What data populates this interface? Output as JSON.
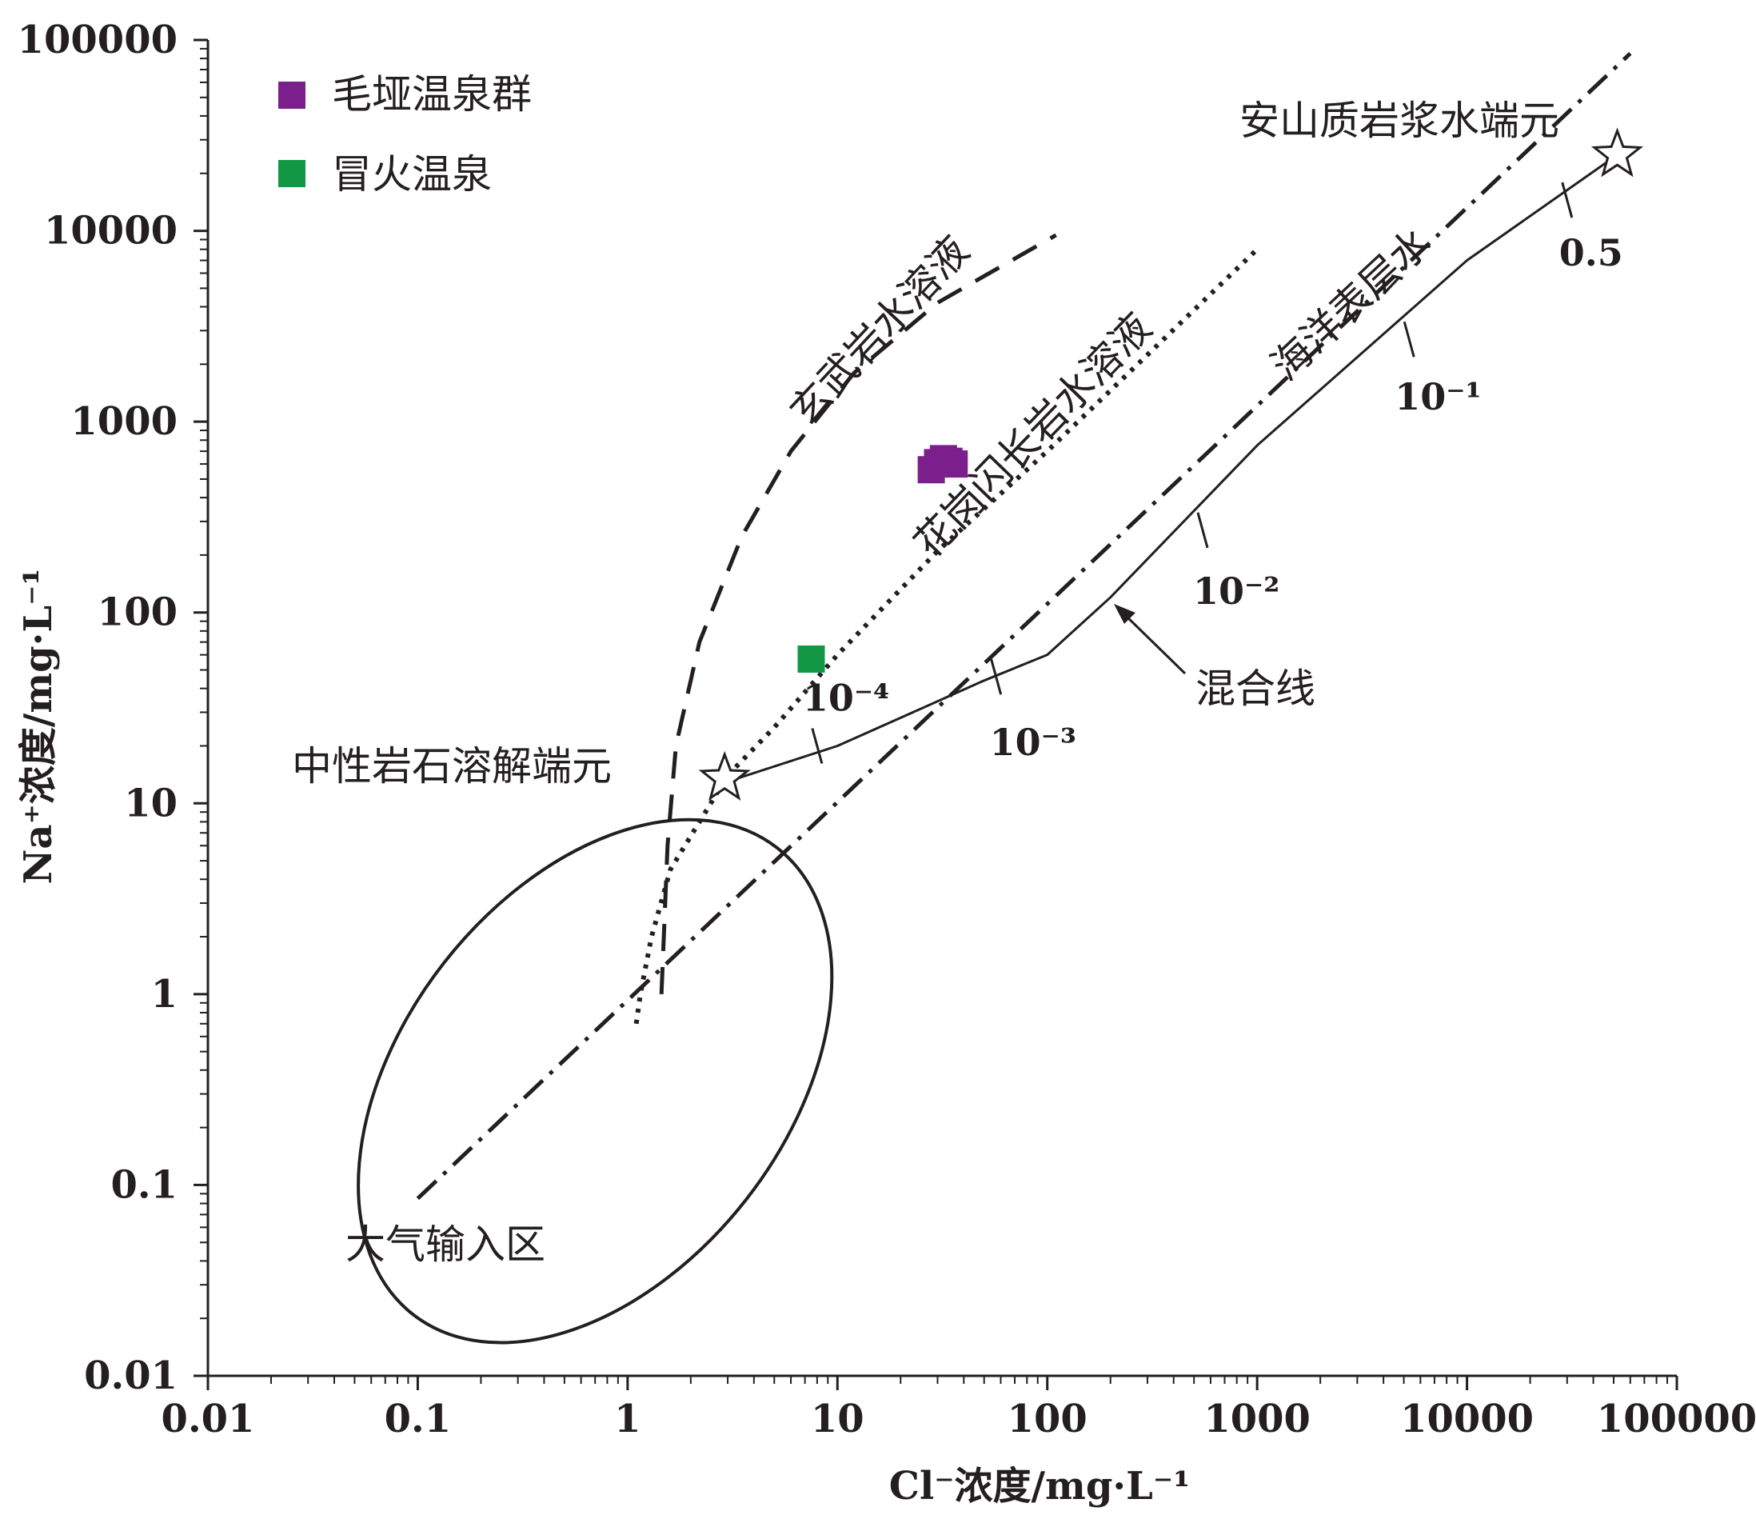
{
  "chart_data": {
    "type": "scatter",
    "xscale": "log",
    "yscale": "log",
    "xlim": [
      0.01,
      100000
    ],
    "ylim": [
      0.01,
      100000
    ],
    "x_ticks": [
      "0.01",
      "0.1",
      "1",
      "10",
      "100",
      "1000",
      "10000",
      "100000"
    ],
    "y_ticks": [
      "0.01",
      "0.1",
      "1",
      "10",
      "100",
      "1000",
      "10000",
      "100000"
    ],
    "xlabel": "Cl⁻浓度/mg·L⁻¹",
    "ylabel": "Na⁺浓度/mg·L⁻¹",
    "legend_position": "top-left",
    "series": [
      {
        "name": "毛垭温泉群",
        "color": "#7b1f8c",
        "points": [
          [
            28,
            560
          ],
          [
            30,
            610
          ],
          [
            32,
            640
          ],
          [
            34,
            620
          ],
          [
            36,
            600
          ]
        ]
      },
      {
        "name": "冒火温泉",
        "color": "#129745",
        "points": [
          [
            7.5,
            57
          ]
        ]
      }
    ],
    "lines": [
      {
        "label": "玄武岩水溶液",
        "style": "dashed",
        "points": [
          [
            1.45,
            1
          ],
          [
            1.5,
            2.5
          ],
          [
            1.55,
            6
          ],
          [
            1.7,
            20
          ],
          [
            2.2,
            70
          ],
          [
            3.5,
            250
          ],
          [
            6,
            700
          ],
          [
            12,
            1800
          ],
          [
            30,
            4200
          ],
          [
            110,
            9500
          ]
        ]
      },
      {
        "label": "花岗闪长岩水溶液",
        "style": "dotted",
        "points": [
          [
            1.1,
            0.7
          ],
          [
            1.15,
            1
          ],
          [
            1.3,
            2
          ],
          [
            1.6,
            4.5
          ],
          [
            3,
            14
          ],
          [
            5,
            25
          ],
          [
            10,
            60
          ],
          [
            30,
            210
          ],
          [
            100,
            700
          ],
          [
            1000,
            8000
          ]
        ]
      },
      {
        "label": "海洋表层水",
        "style": "dash-dot",
        "points": [
          [
            0.1,
            0.085
          ],
          [
            60000,
            85000
          ]
        ]
      },
      {
        "label": "混合线",
        "style": "solid",
        "points": [
          [
            3,
            13
          ],
          [
            10,
            20
          ],
          [
            50,
            44
          ],
          [
            100,
            60
          ],
          [
            200,
            120
          ],
          [
            1000,
            750
          ],
          [
            10000,
            7000
          ],
          [
            52000,
            25000
          ]
        ]
      }
    ],
    "mixing_ticks": [
      {
        "label": "10⁻⁴",
        "x": 8,
        "y": 20
      },
      {
        "label": "10⁻³",
        "x": 57,
        "y": 46
      },
      {
        "label": "10⁻²",
        "x": 550,
        "y": 270
      },
      {
        "label": "10⁻¹",
        "x": 5300,
        "y": 2700
      },
      {
        "label": "0.5",
        "x": 30000,
        "y": 14500
      }
    ],
    "end_members": [
      {
        "label": "中性岩石溶解端元",
        "x": 2.9,
        "y": 13.5
      },
      {
        "label": "安山质岩浆水端元",
        "x": 52000,
        "y": 25000
      }
    ],
    "regions": [
      {
        "label": "大气输入区"
      }
    ],
    "arrow_label": "混合线"
  }
}
